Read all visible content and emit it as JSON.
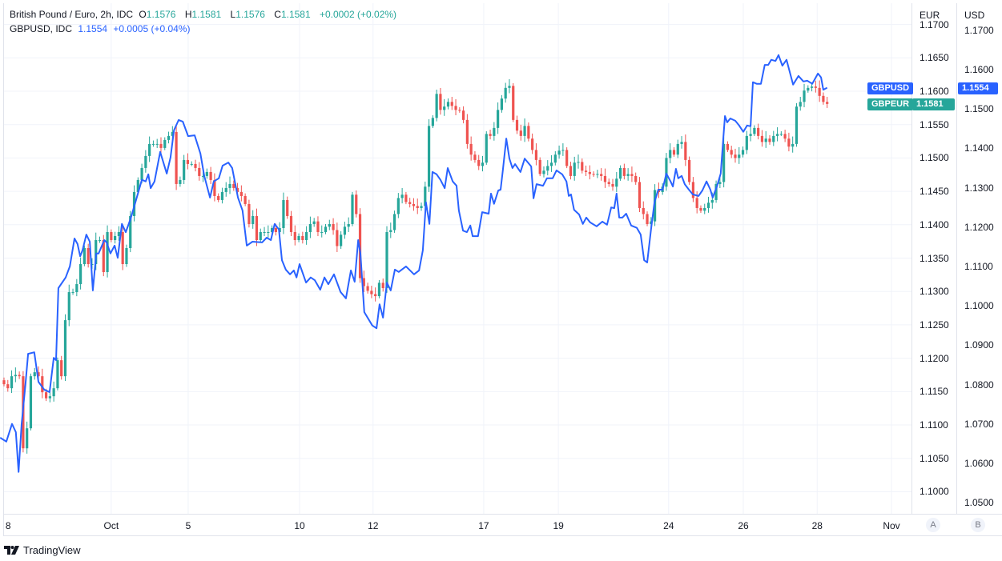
{
  "legend": {
    "main": {
      "symbol": "British Pound / Euro, 2h, IDC",
      "o_label": "O",
      "o": "1.1576",
      "h_label": "H",
      "h": "1.1581",
      "l_label": "L",
      "l": "1.1576",
      "c_label": "C",
      "c": "1.1581",
      "change": "+0.0002 (+0.02%)"
    },
    "compare": {
      "symbol": "GBPUSD, IDC",
      "value": "1.1554",
      "change": "+0.0005 (+0.04%)"
    }
  },
  "colors": {
    "up": "#26a69a",
    "down": "#ef5350",
    "line": "#2962ff",
    "grid": "#f0f3fa"
  },
  "axes": {
    "eur": {
      "title": "EUR",
      "ticks": [
        "1.1700",
        "1.1650",
        "1.1600",
        "1.1550",
        "1.1500",
        "1.1450",
        "1.1400",
        "1.1350",
        "1.1300",
        "1.1250",
        "1.1200",
        "1.1150",
        "1.1100",
        "1.1050",
        "1.1000"
      ]
    },
    "usd": {
      "title": "USD",
      "ticks": [
        "1.1700",
        "1.1600",
        "1.1500",
        "1.1400",
        "1.1300",
        "1.1200",
        "1.1100",
        "1.1000",
        "1.0900",
        "1.0800",
        "1.0700",
        "1.0600",
        "1.0500"
      ]
    },
    "time": [
      {
        "label": "8",
        "i": 0.4
      },
      {
        "label": "Oct",
        "i": 28.0
      },
      {
        "label": "5",
        "i": 48.1
      },
      {
        "label": "10",
        "i": 77.2
      },
      {
        "label": "12",
        "i": 96.4
      },
      {
        "label": "17",
        "i": 125.3
      },
      {
        "label": "19",
        "i": 144.8
      },
      {
        "label": "24",
        "i": 173.6
      },
      {
        "label": "26",
        "i": 193.1
      },
      {
        "label": "28",
        "i": 212.4
      },
      {
        "label": "Nov",
        "i": 231.8
      }
    ],
    "scale_buttons": [
      "A",
      "B"
    ]
  },
  "price_tags": {
    "usd": {
      "name": "GBPUSD",
      "value": "1.1554"
    },
    "eur": {
      "name": "GBPEUR",
      "value": "1.1581"
    }
  },
  "chart_data": {
    "type": "candlestick+line",
    "interval": "2h",
    "series": [
      {
        "name": "GBPEUR",
        "type": "candlestick",
        "scale": "EUR",
        "closes": [
          1.1161,
          1.1155,
          1.1173,
          1.1175,
          1.1173,
          1.1065,
          1.1095,
          1.1173,
          1.1179,
          1.1173,
          1.1149,
          1.114,
          1.1143,
          1.1155,
          1.1197,
          1.1173,
          1.1257,
          1.1299,
          1.1299,
          1.1311,
          1.1341,
          1.1365,
          1.1341,
          1.1341,
          1.1377,
          1.1377,
          1.1329,
          1.1389,
          1.1377,
          1.1383,
          1.1389,
          1.1341,
          1.1365,
          1.1413,
          1.1449,
          1.1467,
          1.1485,
          1.1503,
          1.1521,
          1.1521,
          1.1521,
          1.1515,
          1.1527,
          1.1533,
          1.1539,
          1.1461,
          1.1467,
          1.1497,
          1.1491,
          1.1491,
          1.1485,
          1.1473,
          1.1473,
          1.1479,
          1.1467,
          1.1443,
          1.1437,
          1.1449,
          1.1455,
          1.1461,
          1.1455,
          1.1449,
          1.1443,
          1.1431,
          1.1401,
          1.1413,
          1.1377,
          1.1389,
          1.1389,
          1.1389,
          1.1395,
          1.1389,
          1.1395,
          1.1437,
          1.1413,
          1.1389,
          1.1377,
          1.1383,
          1.1377,
          1.1389,
          1.1401,
          1.1405,
          1.1389,
          1.1389,
          1.1397,
          1.1401,
          1.1392,
          1.1368,
          1.1385,
          1.1397,
          1.1401,
          1.1445,
          1.1416,
          1.132,
          1.1308,
          1.1301,
          1.1296,
          1.1293,
          1.1313,
          1.1305,
          1.1389,
          1.1392,
          1.1416,
          1.144,
          1.1445,
          1.1434,
          1.1431,
          1.1428,
          1.1425,
          1.1428,
          1.1457,
          1.1548,
          1.156,
          1.1596,
          1.1572,
          1.1577,
          1.1584,
          1.1578,
          1.1572,
          1.1571,
          1.1557,
          1.1521,
          1.1505,
          1.1497,
          1.1488,
          1.1493,
          1.1536,
          1.1533,
          1.1545,
          1.1572,
          1.1589,
          1.1605,
          1.1608,
          1.1557,
          1.1541,
          1.1533,
          1.1548,
          1.1529,
          1.1512,
          1.1497,
          1.1476,
          1.1481,
          1.1488,
          1.1493,
          1.1505,
          1.1511,
          1.1512,
          1.1488,
          1.1473,
          1.1493,
          1.1494,
          1.1481,
          1.1479,
          1.1476,
          1.1475,
          1.1476,
          1.1473,
          1.1464,
          1.1461,
          1.1457,
          1.1469,
          1.1485,
          1.1473,
          1.1476,
          1.1473,
          1.1464,
          1.1425,
          1.1416,
          1.1401,
          1.1405,
          1.1452,
          1.1449,
          1.1457,
          1.15,
          1.1512,
          1.1505,
          1.1521,
          1.1524,
          1.1497,
          1.1464,
          1.144,
          1.1425,
          1.1421,
          1.1425,
          1.1433,
          1.1437,
          1.1461,
          1.1464,
          1.1521,
          1.1512,
          1.1505,
          1.15,
          1.1505,
          1.1512,
          1.1533,
          1.1536,
          1.1545,
          1.1533,
          1.1524,
          1.1529,
          1.1524,
          1.1533,
          1.1536,
          1.1536,
          1.1529,
          1.1517,
          1.1521,
          1.1577,
          1.1584,
          1.1601,
          1.1605,
          1.1607,
          1.1605,
          1.1593,
          1.1584,
          1.1581
        ]
      },
      {
        "name": "GBPUSD",
        "type": "line",
        "scale": "USD",
        "points": [
          [
            -1.0,
            1.0665
          ],
          [
            0.6,
            1.0655
          ],
          [
            2.1,
            1.07
          ],
          [
            3.1,
            1.0679
          ],
          [
            3.8,
            1.0578
          ],
          [
            4.6,
            1.07
          ],
          [
            5.6,
            1.0801
          ],
          [
            6.3,
            1.0878
          ],
          [
            7.9,
            1.0882
          ],
          [
            9.0,
            1.0807
          ],
          [
            10.5,
            1.0787
          ],
          [
            11.9,
            1.0781
          ],
          [
            13.0,
            1.0868
          ],
          [
            13.6,
            1.0862
          ],
          [
            14.2,
            1.1045
          ],
          [
            16.1,
            1.1072
          ],
          [
            17.2,
            1.11
          ],
          [
            18.4,
            1.1171
          ],
          [
            19.2,
            1.1157
          ],
          [
            19.9,
            1.1126
          ],
          [
            20.5,
            1.1141
          ],
          [
            21.5,
            1.1181
          ],
          [
            22.4,
            1.1163
          ],
          [
            23.2,
            1.1039
          ],
          [
            24.1,
            1.1133
          ],
          [
            24.7,
            1.1133
          ],
          [
            26.2,
            1.1167
          ],
          [
            26.8,
            1.1161
          ],
          [
            27.8,
            1.1133
          ],
          [
            28.9,
            1.1153
          ],
          [
            29.7,
            1.1122
          ],
          [
            30.8,
            1.1208
          ],
          [
            31.8,
            1.1187
          ],
          [
            33.1,
            1.1222
          ],
          [
            34.5,
            1.1269
          ],
          [
            36.0,
            1.132
          ],
          [
            37.0,
            1.1316
          ],
          [
            37.7,
            1.1334
          ],
          [
            38.3,
            1.1299
          ],
          [
            39.3,
            1.1316
          ],
          [
            40.8,
            1.1391
          ],
          [
            42.5,
            1.1336
          ],
          [
            43.5,
            1.1377
          ],
          [
            44.4,
            1.1446
          ],
          [
            45.6,
            1.1472
          ],
          [
            46.7,
            1.1468
          ],
          [
            48.1,
            1.1431
          ],
          [
            49.8,
            1.1433
          ],
          [
            51.3,
            1.1387
          ],
          [
            52.3,
            1.133
          ],
          [
            53.8,
            1.1275
          ],
          [
            54.8,
            1.1316
          ],
          [
            56.1,
            1.1324
          ],
          [
            57.1,
            1.1356
          ],
          [
            58.6,
            1.1364
          ],
          [
            59.6,
            1.135
          ],
          [
            61.1,
            1.1275
          ],
          [
            62.3,
            1.1242
          ],
          [
            63.4,
            1.1153
          ],
          [
            64.9,
            1.1163
          ],
          [
            67.4,
            1.1161
          ],
          [
            68.6,
            1.1173
          ],
          [
            69.7,
            1.1167
          ],
          [
            70.7,
            1.1208
          ],
          [
            71.8,
            1.1194
          ],
          [
            72.6,
            1.1116
          ],
          [
            73.6,
            1.1092
          ],
          [
            74.7,
            1.108
          ],
          [
            75.7,
            1.109
          ],
          [
            76.4,
            1.1072
          ],
          [
            77.2,
            1.1106
          ],
          [
            78.9,
            1.1059
          ],
          [
            80.1,
            1.1072
          ],
          [
            81.2,
            1.1065
          ],
          [
            82.6,
            1.1041
          ],
          [
            83.7,
            1.1072
          ],
          [
            84.7,
            1.1055
          ],
          [
            86.2,
            1.108
          ],
          [
            87.9,
            1.1035
          ],
          [
            89.3,
            1.1019
          ],
          [
            90.6,
            1.109
          ],
          [
            91.6,
            1.1061
          ],
          [
            92.5,
            1.1167
          ],
          [
            93.1,
            1.1133
          ],
          [
            94.1,
            1.0984
          ],
          [
            96.2,
            1.095
          ],
          [
            97.3,
            1.0943
          ],
          [
            98.1,
            1.1004
          ],
          [
            99.0,
            1.097
          ],
          [
            100.0,
            1.1059
          ],
          [
            101.0,
            1.1039
          ],
          [
            102.1,
            1.1092
          ],
          [
            103.1,
            1.1086
          ],
          [
            105.0,
            1.11
          ],
          [
            107.1,
            1.108
          ],
          [
            108.4,
            1.109
          ],
          [
            109.4,
            1.1141
          ],
          [
            110.2,
            1.1263
          ],
          [
            111.1,
            1.1208
          ],
          [
            111.9,
            1.134
          ],
          [
            113.0,
            1.1334
          ],
          [
            114.0,
            1.132
          ],
          [
            115.1,
            1.1299
          ],
          [
            115.9,
            1.135
          ],
          [
            117.2,
            1.1316
          ],
          [
            118.2,
            1.1305
          ],
          [
            118.8,
            1.1242
          ],
          [
            119.9,
            1.1191
          ],
          [
            120.9,
            1.1187
          ],
          [
            121.8,
            1.1204
          ],
          [
            122.4,
            1.1177
          ],
          [
            123.8,
            1.1177
          ],
          [
            124.9,
            1.1238
          ],
          [
            126.6,
            1.1234
          ],
          [
            127.2,
            1.1285
          ],
          [
            128.0,
            1.1259
          ],
          [
            129.1,
            1.1293
          ],
          [
            129.7,
            1.1295
          ],
          [
            130.3,
            1.1344
          ],
          [
            131.2,
            1.1425
          ],
          [
            132.0,
            1.1374
          ],
          [
            132.8,
            1.135
          ],
          [
            133.5,
            1.136
          ],
          [
            134.9,
            1.134
          ],
          [
            136.0,
            1.1374
          ],
          [
            137.7,
            1.1354
          ],
          [
            138.3,
            1.1273
          ],
          [
            139.1,
            1.1309
          ],
          [
            140.8,
            1.1305
          ],
          [
            141.8,
            1.1324
          ],
          [
            143.3,
            1.1324
          ],
          [
            144.3,
            1.1344
          ],
          [
            145.8,
            1.1334
          ],
          [
            146.9,
            1.1316
          ],
          [
            147.5,
            1.1279
          ],
          [
            148.1,
            1.1283
          ],
          [
            148.9,
            1.1244
          ],
          [
            150.2,
            1.1232
          ],
          [
            151.2,
            1.1208
          ],
          [
            152.1,
            1.1224
          ],
          [
            153.1,
            1.1212
          ],
          [
            154.8,
            1.1202
          ],
          [
            156.3,
            1.1214
          ],
          [
            157.5,
            1.1206
          ],
          [
            158.6,
            1.125
          ],
          [
            159.4,
            1.1248
          ],
          [
            160.0,
            1.1285
          ],
          [
            160.7,
            1.1224
          ],
          [
            161.5,
            1.1224
          ],
          [
            162.5,
            1.1234
          ],
          [
            163.8,
            1.1204
          ],
          [
            165.3,
            1.1198
          ],
          [
            166.3,
            1.1181
          ],
          [
            167.2,
            1.1116
          ],
          [
            168.0,
            1.111
          ],
          [
            169.0,
            1.1194
          ],
          [
            169.9,
            1.1263
          ],
          [
            170.9,
            1.1295
          ],
          [
            172.0,
            1.1295
          ],
          [
            173.0,
            1.1336
          ],
          [
            174.1,
            1.1316
          ],
          [
            174.7,
            1.1303
          ],
          [
            175.5,
            1.1348
          ],
          [
            176.1,
            1.1324
          ],
          [
            177.0,
            1.133
          ],
          [
            177.8,
            1.1309
          ],
          [
            178.9,
            1.1295
          ],
          [
            179.9,
            1.1283
          ],
          [
            181.4,
            1.1279
          ],
          [
            182.4,
            1.1293
          ],
          [
            183.5,
            1.1316
          ],
          [
            184.5,
            1.1295
          ],
          [
            185.1,
            1.1275
          ],
          [
            186.2,
            1.1303
          ],
          [
            187.2,
            1.1336
          ],
          [
            188.3,
            1.1482
          ],
          [
            188.9,
            1.1466
          ],
          [
            189.7,
            1.1476
          ],
          [
            191.0,
            1.147
          ],
          [
            192.0,
            1.1458
          ],
          [
            193.1,
            1.1442
          ],
          [
            194.1,
            1.1458
          ],
          [
            195.0,
            1.1456
          ],
          [
            195.6,
            1.1568
          ],
          [
            196.6,
            1.1564
          ],
          [
            197.7,
            1.1564
          ],
          [
            198.7,
            1.1612
          ],
          [
            199.6,
            1.1612
          ],
          [
            200.4,
            1.1625
          ],
          [
            201.5,
            1.1622
          ],
          [
            202.3,
            1.1637
          ],
          [
            203.3,
            1.161
          ],
          [
            204.4,
            1.1625
          ],
          [
            206.1,
            1.1562
          ],
          [
            207.5,
            1.1584
          ],
          [
            208.8,
            1.157
          ],
          [
            209.8,
            1.1572
          ],
          [
            211.1,
            1.1564
          ],
          [
            212.6,
            1.159
          ],
          [
            213.4,
            1.158
          ],
          [
            214.0,
            1.1549
          ],
          [
            215.0,
            1.1554
          ]
        ]
      }
    ],
    "ylim_eur": [
      1.0975,
      1.1705
    ],
    "ylim_usd": [
      1.0465,
      1.18
    ],
    "grid": true
  },
  "branding": {
    "name": "TradingView"
  }
}
